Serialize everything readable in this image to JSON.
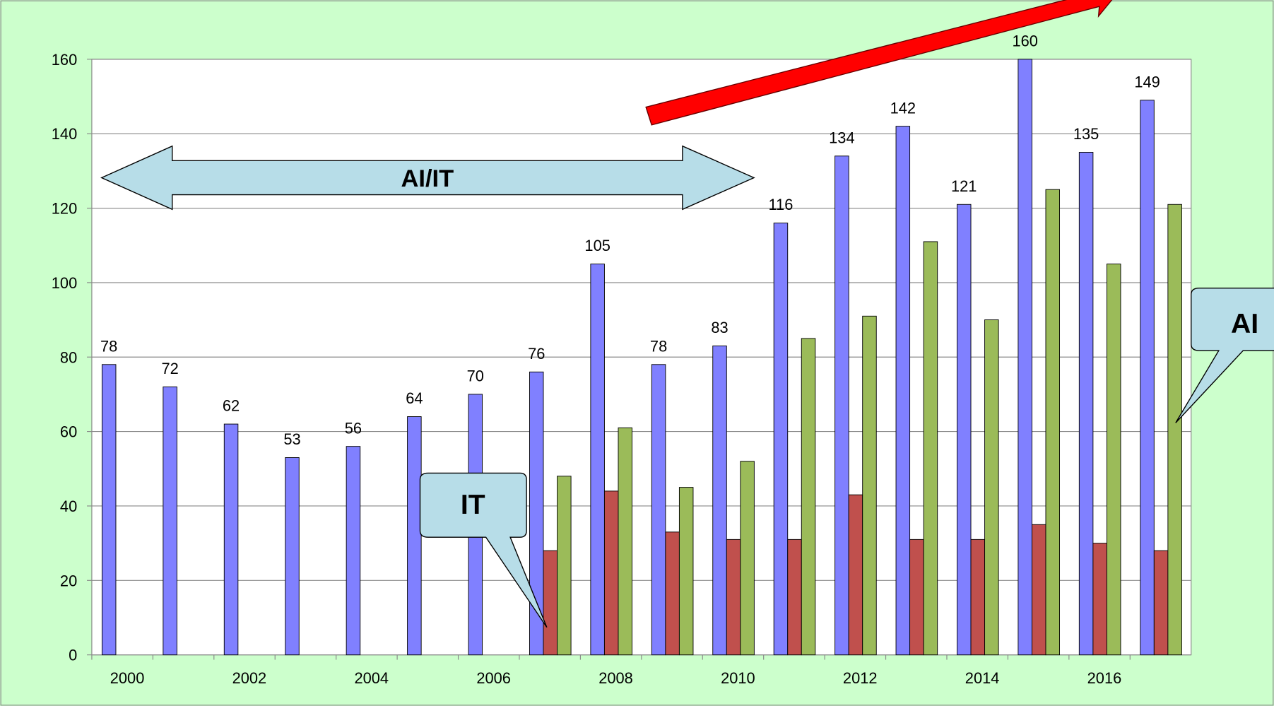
{
  "chart_data": {
    "type": "bar",
    "categories": [
      "2000",
      null,
      "2002",
      null,
      "2004",
      null,
      "2006",
      null,
      "2008",
      null,
      "2010",
      null,
      "2012",
      null,
      "2014",
      null,
      "2016",
      null
    ],
    "series": [
      {
        "color": "#8080ff",
        "values": [
          78,
          72,
          62,
          53,
          56,
          64,
          70,
          76,
          105,
          78,
          83,
          116,
          134,
          142,
          121,
          160,
          135,
          149
        ]
      },
      {
        "color": "#c0504d",
        "values": [
          null,
          null,
          null,
          null,
          null,
          null,
          null,
          28,
          44,
          33,
          31,
          31,
          43,
          31,
          31,
          35,
          30,
          28
        ]
      },
      {
        "color": "#9bbb59",
        "values": [
          null,
          null,
          null,
          null,
          null,
          null,
          null,
          48,
          61,
          45,
          52,
          85,
          91,
          111,
          90,
          125,
          105,
          121
        ]
      }
    ],
    "data_labels_series": 0,
    "ylim": [
      0,
      160
    ],
    "yticks": [
      0,
      20,
      40,
      60,
      80,
      100,
      120,
      140,
      160
    ],
    "grid": true,
    "annotations": [
      "AI/IT",
      "IT",
      "AI"
    ]
  }
}
